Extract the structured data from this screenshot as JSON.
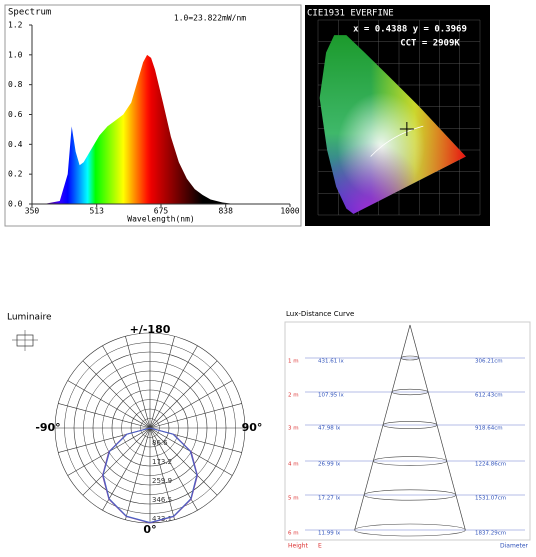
{
  "chart_data": [
    {
      "type": "area",
      "title": "Spectrum",
      "annotation": "1.0=23.822mW/nm",
      "x_label": "Wavelength(nm)",
      "x": [
        380,
        420,
        440,
        450,
        460,
        470,
        480,
        500,
        520,
        540,
        560,
        580,
        600,
        620,
        630,
        640,
        650,
        660,
        680,
        700,
        720,
        740,
        760,
        780,
        800,
        830,
        860,
        900
      ],
      "values": [
        0,
        0.02,
        0.2,
        0.52,
        0.35,
        0.26,
        0.28,
        0.37,
        0.46,
        0.52,
        0.56,
        0.6,
        0.68,
        0.86,
        0.95,
        1.0,
        0.98,
        0.9,
        0.68,
        0.45,
        0.28,
        0.17,
        0.1,
        0.06,
        0.03,
        0.01,
        0,
        0
      ],
      "xlim": [
        350,
        1000
      ],
      "xticks": [
        350,
        513,
        675,
        838,
        1000
      ],
      "ylim": [
        0,
        1.2
      ],
      "yticks": [
        {
          "value": 0,
          "label": "0.0"
        },
        {
          "value": 0.2,
          "label": "0.2"
        },
        {
          "value": 0.4,
          "label": "0.4"
        },
        {
          "value": 0.6,
          "label": "0.6"
        },
        {
          "value": 0.8,
          "label": "0.8"
        },
        {
          "value": 1,
          "label": "1.0"
        },
        {
          "value": 1.2,
          "label": "1.2"
        }
      ]
    },
    {
      "type": "polar",
      "title": "Luminaire",
      "top_label": "+/-180",
      "left_label": "-90°",
      "right_label": "90°",
      "bottom_label": "0°",
      "theta": [
        -90,
        -75,
        -60,
        -45,
        -30,
        -15,
        0,
        15,
        30,
        45,
        60,
        75,
        90
      ],
      "series": [
        {
          "color": "#7a4aa6",
          "values": [
            0,
            112,
            217,
            306,
            375,
            418,
            433.1,
            418,
            375,
            306,
            217,
            112,
            0
          ]
        },
        {
          "color": "#4a62c4",
          "values": [
            0,
            108,
            212,
            302,
            372,
            416,
            431,
            416,
            372,
            302,
            212,
            108,
            0
          ]
        }
      ],
      "rlim": [
        0,
        433.1
      ],
      "rticks": [
        86.6,
        173.2,
        259.9,
        346.5,
        433.1
      ]
    }
  ],
  "cie": {
    "title": "CIE1931 EVERFINE",
    "coords": "x = 0.4388 y = 0.3969",
    "cct": "CCT = 2909K"
  },
  "lux": {
    "title": "Lux-Distance Curve",
    "rows": [
      [
        "1 m",
        "431.61 lx",
        "306.21cm"
      ],
      [
        "2 m",
        "107.95 lx",
        "612.43cm"
      ],
      [
        "3 m",
        "47.98 lx",
        "918.64cm"
      ],
      [
        "4 m",
        "26.99 lx",
        "1224.86cm"
      ],
      [
        "5 m",
        "17.27 lx",
        "1531.07cm"
      ],
      [
        "6 m",
        "11.99 lx",
        "1837.29cm"
      ]
    ],
    "footer": [
      "Height",
      "E",
      "Diameter"
    ]
  }
}
